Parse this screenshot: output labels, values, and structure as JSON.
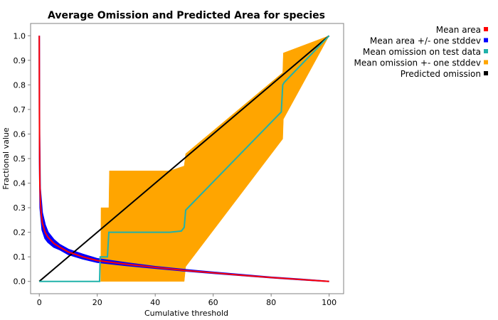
{
  "chart_data": {
    "type": "area",
    "title": "Average Omission and Predicted Area for species",
    "xlabel": "Cumulative threshold",
    "ylabel": "Fractional value",
    "xlim": [
      -3,
      105
    ],
    "ylim": [
      -0.05,
      1.05
    ],
    "xticks": [
      "0",
      "20",
      "40",
      "60",
      "80",
      "100"
    ],
    "yticks": [
      "0.0",
      "0.1",
      "0.2",
      "0.3",
      "0.4",
      "0.5",
      "0.6",
      "0.7",
      "0.8",
      "0.9",
      "1.0"
    ],
    "legend_position": "top-right, outside plot",
    "grid": false,
    "series": [
      {
        "name": "Mean area",
        "color": "#ff0000",
        "x": [
          0,
          0.05,
          0.1,
          0.2,
          0.4,
          0.7,
          1,
          2,
          3,
          5,
          7,
          10,
          15,
          20,
          30,
          40,
          50,
          60,
          70,
          80,
          90,
          100
        ],
        "y": [
          1.0,
          0.7,
          0.55,
          0.4,
          0.32,
          0.27,
          0.24,
          0.2,
          0.18,
          0.155,
          0.14,
          0.12,
          0.1,
          0.085,
          0.07,
          0.057,
          0.045,
          0.035,
          0.025,
          0.016,
          0.008,
          0.0
        ]
      },
      {
        "name": "Mean area +/- one stddev",
        "color": "#0000ff",
        "x": [
          0,
          0.1,
          0.3,
          1,
          2,
          3,
          5,
          7,
          10,
          15,
          20,
          30,
          40,
          50,
          60,
          70,
          80,
          90,
          100
        ],
        "upper": [
          1.0,
          0.6,
          0.38,
          0.28,
          0.23,
          0.2,
          0.17,
          0.15,
          0.13,
          0.11,
          0.092,
          0.075,
          0.06,
          0.048,
          0.037,
          0.027,
          0.017,
          0.009,
          0.0
        ],
        "lower": [
          1.0,
          0.5,
          0.3,
          0.21,
          0.175,
          0.16,
          0.14,
          0.13,
          0.11,
          0.092,
          0.078,
          0.065,
          0.054,
          0.043,
          0.033,
          0.024,
          0.015,
          0.007,
          0.0
        ]
      },
      {
        "name": "Mean omission on test data",
        "color": "#20b2aa",
        "x": [
          0,
          20.8,
          21,
          21.5,
          23.5,
          24,
          24.5,
          45,
          49,
          50,
          50.5,
          83.5,
          84,
          84.5,
          100
        ],
        "y": [
          0.0,
          0.0,
          0.1,
          0.1,
          0.1,
          0.2,
          0.2,
          0.2,
          0.205,
          0.22,
          0.29,
          0.69,
          0.8,
          0.81,
          1.0
        ]
      },
      {
        "name": "Mean omission +- one stddev",
        "color": "#ffa500",
        "x": [
          0,
          20.8,
          21.2,
          21.3,
          23.5,
          24,
          24.2,
          45,
          50,
          50.5,
          84,
          84.2,
          100
        ],
        "upper": [
          0.0,
          0.0,
          0.0,
          0.3,
          0.3,
          0.3,
          0.45,
          0.45,
          0.47,
          0.52,
          0.85,
          0.93,
          1.0
        ],
        "lower": [
          0.0,
          0.0,
          0.0,
          0.0,
          0.0,
          0.0,
          0.0,
          0.0,
          0.0,
          0.06,
          0.58,
          0.66,
          1.0
        ]
      },
      {
        "name": "Predicted omission",
        "color": "#000000",
        "x": [
          0,
          100
        ],
        "y": [
          0.0,
          1.0
        ]
      }
    ]
  }
}
